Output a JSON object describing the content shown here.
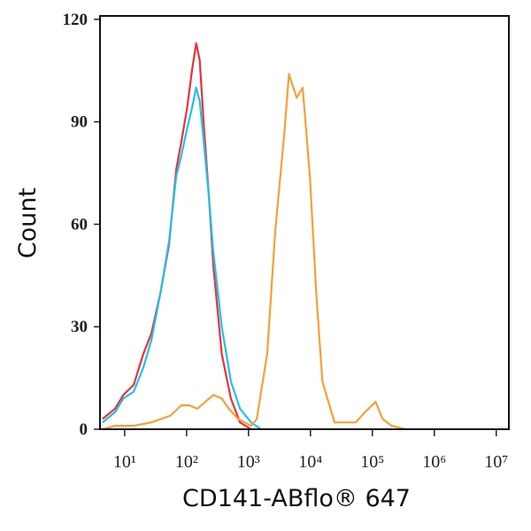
{
  "chart_data": {
    "type": "line",
    "xlabel": "CD141-ABflo® 647",
    "ylabel": "Count",
    "xscale": "log",
    "xlim": [
      4,
      16000000
    ],
    "xticks": [
      {
        "value": 10,
        "label": "10¹"
      },
      {
        "value": 100,
        "label": "10²"
      },
      {
        "value": 1000,
        "label": "10³"
      },
      {
        "value": 10000,
        "label": "10⁴"
      },
      {
        "value": 100000,
        "label": "10⁵"
      },
      {
        "value": 1000000,
        "label": "10⁶"
      },
      {
        "value": 10000000,
        "label": "10⁷"
      }
    ],
    "ylim": [
      0,
      121
    ],
    "yticks": [
      0,
      30,
      60,
      90,
      120
    ],
    "series": [
      {
        "color": "#e8323c",
        "x": [
          4.4,
          7,
          9.5,
          14,
          20,
          27,
          38,
          52,
          68,
          82,
          102,
          122,
          143,
          163,
          190,
          230,
          270,
          370,
          520,
          730,
          1100
        ],
        "values": [
          3,
          6,
          10,
          13,
          22,
          28,
          40,
          54,
          76,
          84,
          94,
          105,
          113,
          108,
          89,
          68,
          48,
          22,
          9,
          2,
          0
        ]
      },
      {
        "color": "#22c0e8",
        "x": [
          4.4,
          7,
          9.5,
          14,
          20,
          27,
          38,
          52,
          68,
          82,
          102,
          122,
          143,
          163,
          190,
          230,
          270,
          370,
          520,
          730,
          1100,
          1600
        ],
        "values": [
          2,
          5,
          9,
          11,
          18,
          26,
          40,
          55,
          74,
          80,
          88,
          94,
          100,
          96,
          84,
          68,
          52,
          30,
          14,
          6,
          2,
          0
        ]
      },
      {
        "color": "#f7a035",
        "x": [
          4.4,
          7,
          14,
          27,
          55,
          82,
          110,
          150,
          200,
          270,
          370,
          480,
          680,
          1100,
          1360,
          2000,
          2700,
          3800,
          4500,
          6000,
          7500,
          9800,
          12400,
          15600,
          24500,
          54000,
          76000,
          113000,
          146000,
          204000,
          340000
        ],
        "values": [
          0,
          1,
          1,
          2,
          4,
          7,
          7,
          6,
          8,
          10,
          9,
          6,
          3,
          1,
          3,
          22,
          58,
          87,
          104,
          97,
          100,
          74,
          40,
          14,
          2,
          2,
          5,
          8,
          3,
          1,
          0
        ]
      }
    ]
  }
}
